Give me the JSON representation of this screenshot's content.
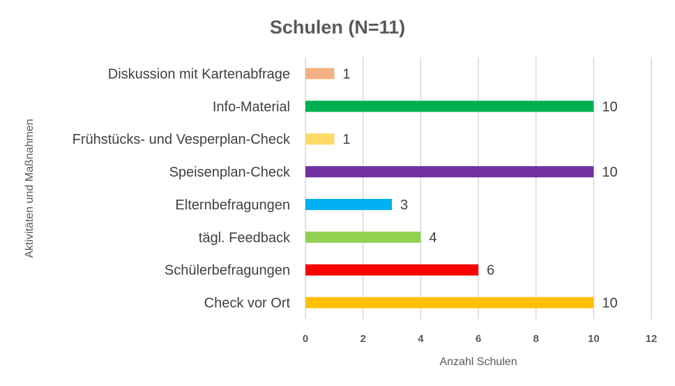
{
  "chart_data": {
    "type": "bar",
    "orientation": "horizontal",
    "title": "Schulen (N=11)",
    "xlabel": "Anzahl Schulen",
    "ylabel": "Aktivitäten und Maßnahmen",
    "xlim": [
      0,
      12
    ],
    "xticks": [
      "0",
      "2",
      "4",
      "6",
      "8",
      "10",
      "12"
    ],
    "grid": "vertical",
    "legend": "none",
    "categories": [
      "Diskussion mit Kartenabfrage",
      "Info-Material",
      "Frühstücks- und Vesperplan-Check",
      "Speisenplan-Check",
      "Elternbefragungen",
      "tägl. Feedback",
      "Schülerbefragungen",
      "Check vor Ort"
    ],
    "values": [
      1,
      10,
      1,
      10,
      3,
      4,
      6,
      10
    ],
    "data_labels": [
      "1",
      "10",
      "1",
      "10",
      "3",
      "4",
      "6",
      "10"
    ],
    "colors": [
      "#f4b183",
      "#00b050",
      "#ffd966",
      "#7030a0",
      "#00b0f0",
      "#92d050",
      "#ff0000",
      "#ffc000"
    ]
  }
}
